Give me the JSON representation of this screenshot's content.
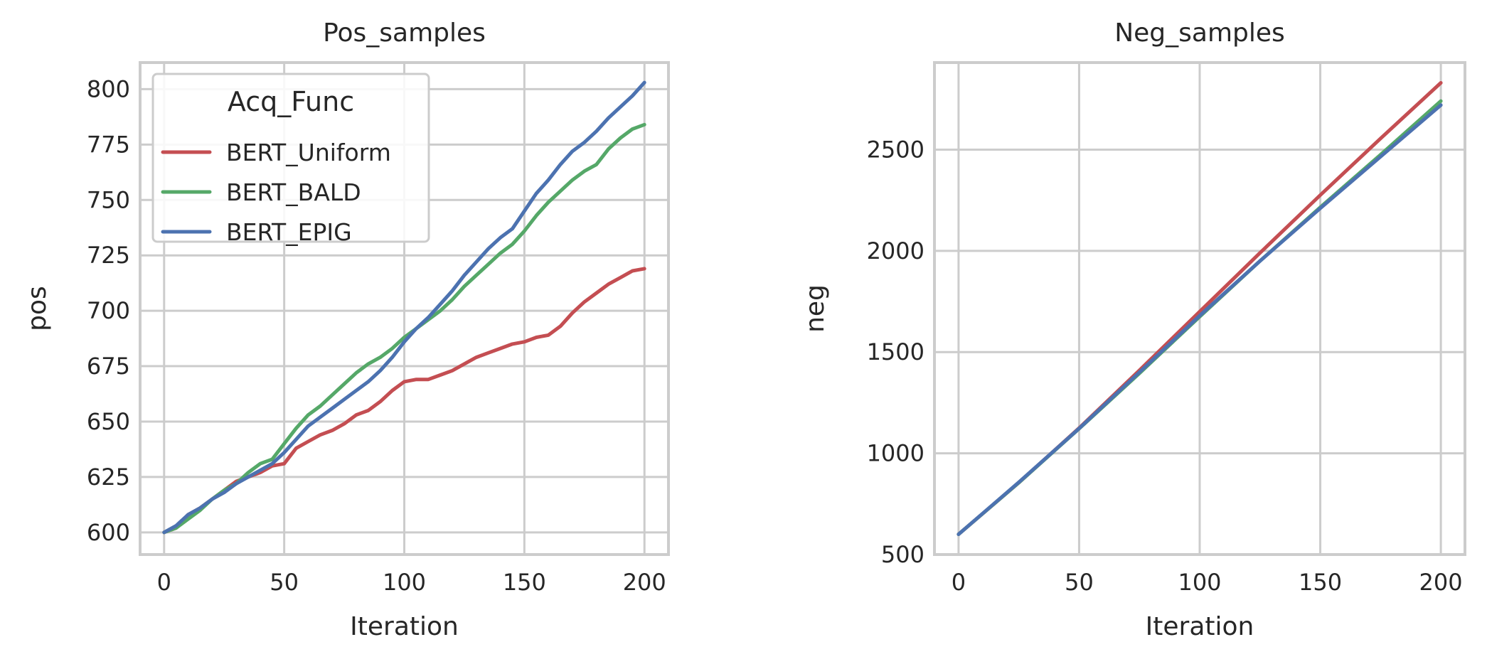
{
  "chart_data": [
    {
      "type": "line",
      "title": "Pos_samples",
      "xlabel": "Iteration",
      "ylabel": "pos",
      "xlim": [
        -10,
        210
      ],
      "ylim": [
        590,
        812
      ],
      "xticks": [
        0,
        50,
        100,
        150,
        200
      ],
      "yticks": [
        600,
        625,
        650,
        675,
        700,
        725,
        750,
        775,
        800
      ],
      "grid": true,
      "legend": {
        "title": "Acq_Func",
        "placement": "top-left"
      },
      "series": [
        {
          "name": "BERT_Uniform",
          "color": "#c44e52",
          "points": [
            [
              0,
              600
            ],
            [
              5,
              602
            ],
            [
              10,
              608
            ],
            [
              15,
              611
            ],
            [
              20,
              615
            ],
            [
              25,
              619
            ],
            [
              30,
              623
            ],
            [
              35,
              625
            ],
            [
              40,
              627
            ],
            [
              45,
              630
            ],
            [
              50,
              631
            ],
            [
              55,
              638
            ],
            [
              60,
              641
            ],
            [
              65,
              644
            ],
            [
              70,
              646
            ],
            [
              75,
              649
            ],
            [
              80,
              653
            ],
            [
              85,
              655
            ],
            [
              90,
              659
            ],
            [
              95,
              664
            ],
            [
              100,
              668
            ],
            [
              105,
              669
            ],
            [
              110,
              669
            ],
            [
              115,
              671
            ],
            [
              120,
              673
            ],
            [
              125,
              676
            ],
            [
              130,
              679
            ],
            [
              135,
              681
            ],
            [
              140,
              683
            ],
            [
              145,
              685
            ],
            [
              150,
              686
            ],
            [
              155,
              688
            ],
            [
              160,
              689
            ],
            [
              165,
              693
            ],
            [
              170,
              699
            ],
            [
              175,
              704
            ],
            [
              180,
              708
            ],
            [
              185,
              712
            ],
            [
              190,
              715
            ],
            [
              195,
              718
            ],
            [
              200,
              719
            ]
          ]
        },
        {
          "name": "BERT_BALD",
          "color": "#55a868",
          "points": [
            [
              0,
              600
            ],
            [
              5,
              602
            ],
            [
              10,
              606
            ],
            [
              15,
              610
            ],
            [
              20,
              615
            ],
            [
              25,
              619
            ],
            [
              30,
              622
            ],
            [
              35,
              627
            ],
            [
              40,
              631
            ],
            [
              45,
              633
            ],
            [
              50,
              640
            ],
            [
              55,
              647
            ],
            [
              60,
              653
            ],
            [
              65,
              657
            ],
            [
              70,
              662
            ],
            [
              75,
              667
            ],
            [
              80,
              672
            ],
            [
              85,
              676
            ],
            [
              90,
              679
            ],
            [
              95,
              683
            ],
            [
              100,
              688
            ],
            [
              105,
              692
            ],
            [
              110,
              696
            ],
            [
              115,
              700
            ],
            [
              120,
              705
            ],
            [
              125,
              711
            ],
            [
              130,
              716
            ],
            [
              135,
              721
            ],
            [
              140,
              726
            ],
            [
              145,
              730
            ],
            [
              150,
              736
            ],
            [
              155,
              743
            ],
            [
              160,
              749
            ],
            [
              165,
              754
            ],
            [
              170,
              759
            ],
            [
              175,
              763
            ],
            [
              180,
              766
            ],
            [
              185,
              773
            ],
            [
              190,
              778
            ],
            [
              195,
              782
            ],
            [
              200,
              784
            ]
          ]
        },
        {
          "name": "BERT_EPIG",
          "color": "#4c72b0",
          "points": [
            [
              0,
              600
            ],
            [
              5,
              603
            ],
            [
              10,
              608
            ],
            [
              15,
              611
            ],
            [
              20,
              615
            ],
            [
              25,
              618
            ],
            [
              30,
              622
            ],
            [
              35,
              625
            ],
            [
              40,
              628
            ],
            [
              45,
              631
            ],
            [
              50,
              636
            ],
            [
              55,
              642
            ],
            [
              60,
              648
            ],
            [
              65,
              652
            ],
            [
              70,
              656
            ],
            [
              75,
              660
            ],
            [
              80,
              664
            ],
            [
              85,
              668
            ],
            [
              90,
              673
            ],
            [
              95,
              679
            ],
            [
              100,
              686
            ],
            [
              105,
              692
            ],
            [
              110,
              697
            ],
            [
              115,
              703
            ],
            [
              120,
              709
            ],
            [
              125,
              716
            ],
            [
              130,
              722
            ],
            [
              135,
              728
            ],
            [
              140,
              733
            ],
            [
              145,
              737
            ],
            [
              150,
              745
            ],
            [
              155,
              753
            ],
            [
              160,
              759
            ],
            [
              165,
              766
            ],
            [
              170,
              772
            ],
            [
              175,
              776
            ],
            [
              180,
              781
            ],
            [
              185,
              787
            ],
            [
              190,
              792
            ],
            [
              195,
              797
            ],
            [
              200,
              803
            ]
          ]
        }
      ]
    },
    {
      "type": "line",
      "title": "Neg_samples",
      "xlabel": "Iteration",
      "ylabel": "neg",
      "xlim": [
        -10,
        210
      ],
      "ylim": [
        500,
        2930
      ],
      "xticks": [
        0,
        50,
        100,
        150,
        200
      ],
      "yticks": [
        500,
        1000,
        1500,
        2000,
        2500
      ],
      "grid": true,
      "series": [
        {
          "name": "BERT_Uniform",
          "color": "#c44e52",
          "points": [
            [
              0,
              600
            ],
            [
              25,
              855
            ],
            [
              50,
              1125
            ],
            [
              75,
              1410
            ],
            [
              100,
              1700
            ],
            [
              125,
              1990
            ],
            [
              150,
              2275
            ],
            [
              175,
              2555
            ],
            [
              200,
              2830
            ]
          ]
        },
        {
          "name": "BERT_BALD",
          "color": "#55a868",
          "points": [
            [
              0,
              600
            ],
            [
              25,
              855
            ],
            [
              50,
              1122
            ],
            [
              75,
              1395
            ],
            [
              100,
              1675
            ],
            [
              125,
              1950
            ],
            [
              150,
              2215
            ],
            [
              175,
              2475
            ],
            [
              200,
              2740
            ]
          ]
        },
        {
          "name": "BERT_EPIG",
          "color": "#4c72b0",
          "points": [
            [
              0,
              600
            ],
            [
              25,
              857
            ],
            [
              50,
              1123
            ],
            [
              75,
              1400
            ],
            [
              100,
              1680
            ],
            [
              125,
              1950
            ],
            [
              150,
              2210
            ],
            [
              175,
              2465
            ],
            [
              200,
              2720
            ]
          ]
        }
      ]
    }
  ]
}
